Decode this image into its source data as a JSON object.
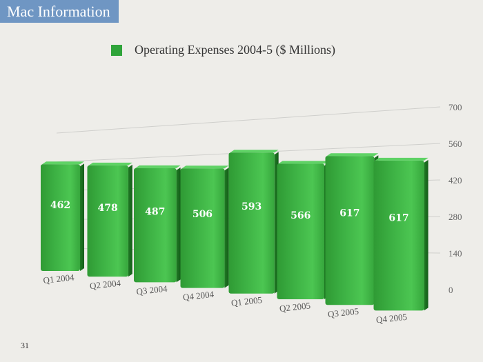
{
  "slide": {
    "title": "Mac Information",
    "page_number": "31"
  },
  "colors": {
    "title_bg": "#6f96c3",
    "bar": "#3cb043",
    "bar_dark": "#1f7a24",
    "legend_swatch": "#2fa43a"
  },
  "chart_data": {
    "type": "bar",
    "title": "",
    "legend": [
      "Operating Expenses 2004-5 ($ Millions)"
    ],
    "legend_position": "top",
    "categories": [
      "Q1 2004",
      "Q2 2004",
      "Q3 2004",
      "Q4 2004",
      "Q1 2005",
      "Q2 2005",
      "Q3 2005",
      "Q4 2005"
    ],
    "series": [
      {
        "name": "Operating Expenses 2004-5 ($ Millions)",
        "values": [
          462,
          478,
          487,
          506,
          593,
          566,
          617,
          617
        ]
      }
    ],
    "y_ticks": [
      0,
      140,
      280,
      420,
      560,
      700
    ],
    "ylim": [
      0,
      700
    ],
    "grid": true,
    "y_axis_side": "right",
    "style": "3d-perspective"
  }
}
